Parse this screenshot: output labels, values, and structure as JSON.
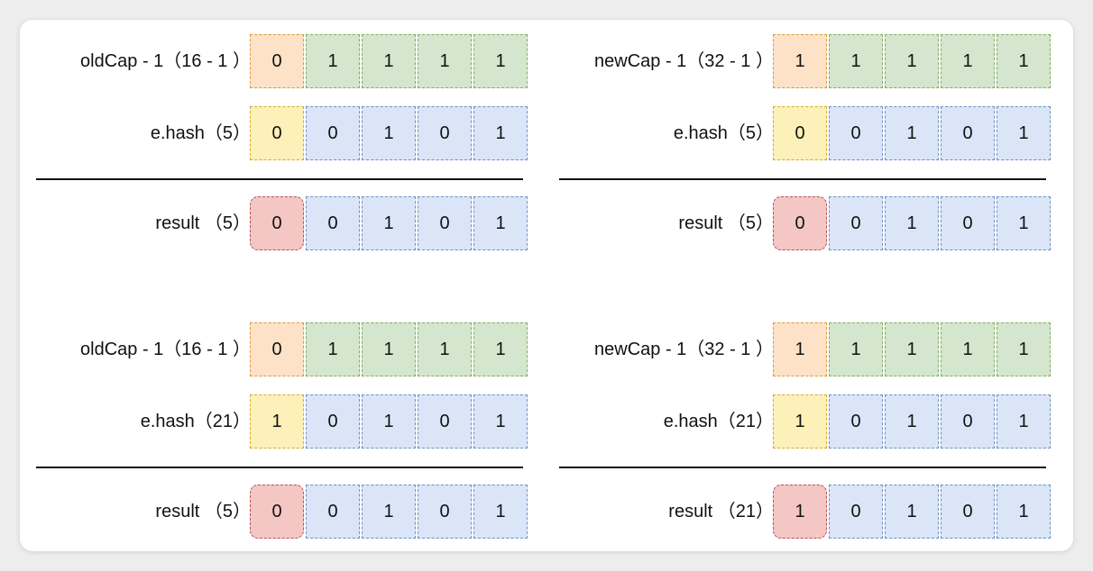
{
  "panels": [
    {
      "id": "top-left",
      "rows": [
        {
          "label": "oldCap - 1（16 - 1 ）",
          "first_color": "orange",
          "bits": [
            "0",
            "1",
            "1",
            "1",
            "1"
          ]
        },
        {
          "label": "e.hash（5）",
          "first_color": "yellow",
          "bits": [
            "0",
            "0",
            "1",
            "0",
            "1"
          ]
        },
        {
          "label": "result （5）",
          "first_color": "red",
          "bits": [
            "0",
            "0",
            "1",
            "0",
            "1"
          ]
        }
      ]
    },
    {
      "id": "top-right",
      "rows": [
        {
          "label": "newCap - 1（32 - 1 ）",
          "first_color": "orange",
          "bits": [
            "1",
            "1",
            "1",
            "1",
            "1"
          ]
        },
        {
          "label": "e.hash（5）",
          "first_color": "yellow",
          "bits": [
            "0",
            "0",
            "1",
            "0",
            "1"
          ]
        },
        {
          "label": "result （5）",
          "first_color": "red",
          "bits": [
            "0",
            "0",
            "1",
            "0",
            "1"
          ]
        }
      ]
    },
    {
      "id": "bottom-left",
      "rows": [
        {
          "label": "oldCap - 1（16 - 1 ）",
          "first_color": "orange",
          "bits": [
            "0",
            "1",
            "1",
            "1",
            "1"
          ]
        },
        {
          "label": "e.hash（21）",
          "first_color": "yellow",
          "bits": [
            "1",
            "0",
            "1",
            "0",
            "1"
          ]
        },
        {
          "label": "result （5）",
          "first_color": "red",
          "bits": [
            "0",
            "0",
            "1",
            "0",
            "1"
          ]
        }
      ]
    },
    {
      "id": "bottom-right",
      "rows": [
        {
          "label": "newCap - 1（32 - 1 ）",
          "first_color": "orange",
          "bits": [
            "1",
            "1",
            "1",
            "1",
            "1"
          ]
        },
        {
          "label": "e.hash（21）",
          "first_color": "yellow",
          "bits": [
            "1",
            "0",
            "1",
            "0",
            "1"
          ]
        },
        {
          "label": "result （21）",
          "first_color": "red",
          "bits": [
            "1",
            "0",
            "1",
            "0",
            "1"
          ]
        }
      ]
    }
  ],
  "colors": {
    "orange": "#fde2c8",
    "green": "#d4e6cd",
    "yellow": "#fdf0b8",
    "blue": "#dae6f8",
    "red": "#f4c6c4"
  }
}
